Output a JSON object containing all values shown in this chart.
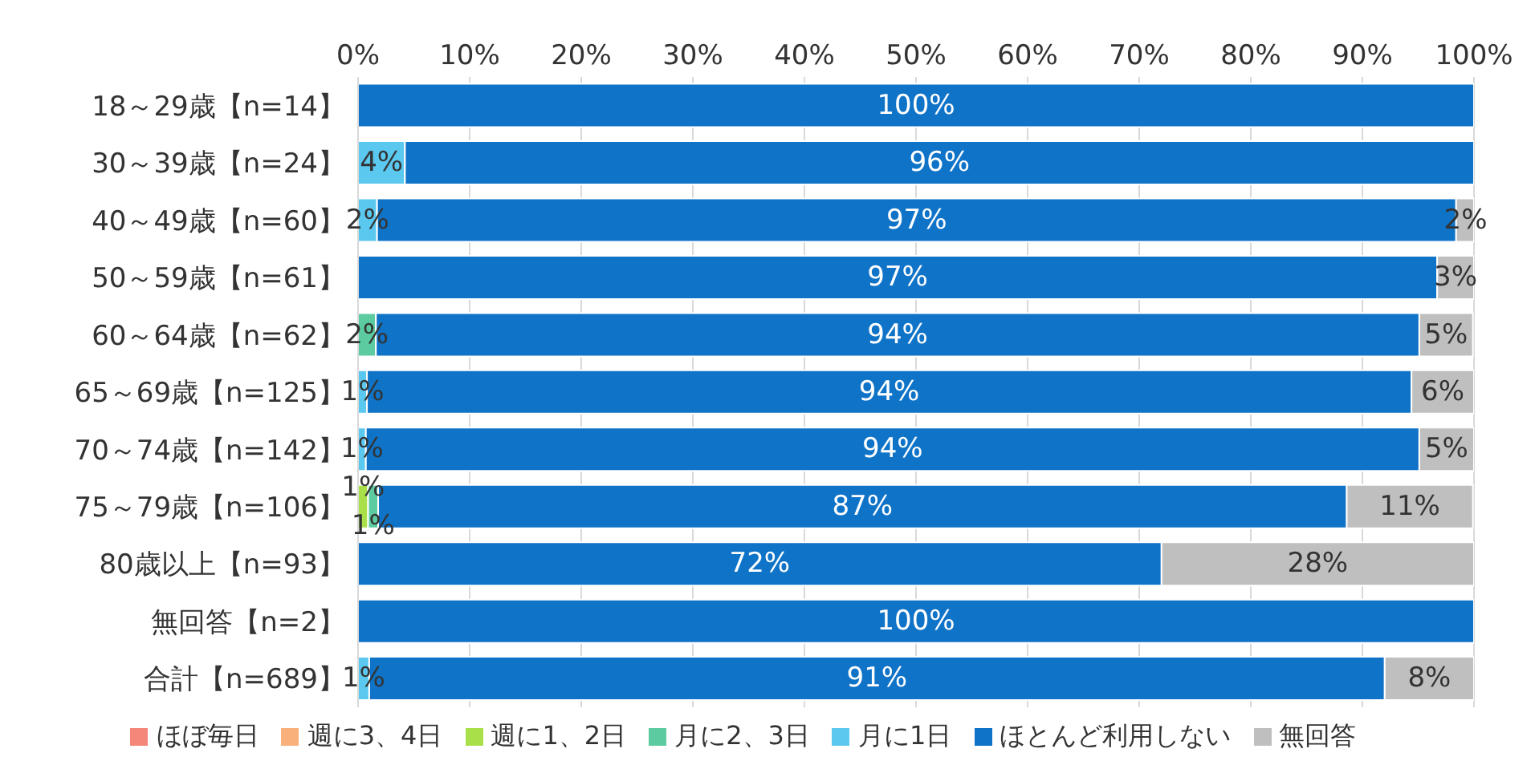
{
  "chart_data": {
    "type": "bar",
    "orientation": "horizontal",
    "stacked": true,
    "categories": [
      "18～29歳【n=14】",
      "30～39歳【n=24】",
      "40～49歳【n=60】",
      "50～59歳【n=61】",
      "60～64歳【n=62】",
      "65～69歳【n=125】",
      "70～74歳【n=142】",
      "75～79歳【n=106】",
      "80歳以上【n=93】",
      "無回答【n=2】",
      "合計【n=689】"
    ],
    "series": [
      {
        "name": "ほぼ毎日",
        "color": "#f4877a",
        "values": [
          0,
          0,
          0,
          0,
          0,
          0,
          0,
          0,
          0,
          0,
          0
        ],
        "value_labels": [
          null,
          null,
          null,
          null,
          null,
          null,
          null,
          null,
          null,
          null,
          null
        ]
      },
      {
        "name": "週に3、4日",
        "color": "#f9b07a",
        "values": [
          0,
          0,
          0,
          0,
          0,
          0,
          0,
          0,
          0,
          0,
          0
        ],
        "value_labels": [
          null,
          null,
          null,
          null,
          null,
          null,
          null,
          null,
          null,
          null,
          null
        ]
      },
      {
        "name": "週に1、2日",
        "color": "#a9e04a",
        "values": [
          0,
          0,
          0,
          0,
          0,
          0,
          0,
          0.9,
          0,
          0,
          0
        ],
        "value_labels": [
          null,
          null,
          null,
          null,
          null,
          null,
          null,
          "1%",
          null,
          null,
          null
        ]
      },
      {
        "name": "月に2、3日",
        "color": "#5ccba0",
        "values": [
          0,
          0,
          0,
          0,
          1.6,
          0,
          0,
          0.9,
          0,
          0,
          0
        ],
        "value_labels": [
          null,
          null,
          null,
          null,
          "2%",
          null,
          null,
          "1%",
          null,
          null,
          null
        ]
      },
      {
        "name": "月に1日",
        "color": "#5bc8f0",
        "values": [
          0,
          4.2,
          1.7,
          0,
          0,
          0.8,
          0.7,
          0,
          0,
          0,
          1.0
        ],
        "value_labels": [
          null,
          "4%",
          "2%",
          null,
          null,
          "1%",
          "1%",
          null,
          null,
          null,
          "1%"
        ]
      },
      {
        "name": "ほとんど利用しない",
        "color": "#0f73c8",
        "values": [
          100,
          95.8,
          96.7,
          96.7,
          93.5,
          93.6,
          94.4,
          86.8,
          72.0,
          100,
          91.0
        ],
        "value_labels": [
          "100%",
          "96%",
          "97%",
          "97%",
          "94%",
          "94%",
          "94%",
          "87%",
          "72%",
          "100%",
          "91%"
        ]
      },
      {
        "name": "無回答",
        "color": "#bfbfbf",
        "values": [
          0,
          0,
          1.7,
          3.3,
          4.8,
          5.6,
          4.9,
          11.3,
          28.0,
          0,
          8.0
        ],
        "value_labels": [
          null,
          null,
          "2%",
          "3%",
          "5%",
          "6%",
          "5%",
          "11%",
          "28%",
          null,
          "8%"
        ]
      }
    ],
    "xlim": [
      0,
      100
    ],
    "xticks": [
      {
        "value": 0,
        "label": "0%"
      },
      {
        "value": 10,
        "label": "10%"
      },
      {
        "value": 20,
        "label": "20%"
      },
      {
        "value": 30,
        "label": "30%"
      },
      {
        "value": 40,
        "label": "40%"
      },
      {
        "value": 50,
        "label": "50%"
      },
      {
        "value": 60,
        "label": "60%"
      },
      {
        "value": 70,
        "label": "70%"
      },
      {
        "value": 80,
        "label": "80%"
      },
      {
        "value": 90,
        "label": "90%"
      },
      {
        "value": 100,
        "label": "100%"
      }
    ],
    "grid": "x",
    "legend": "bottom"
  }
}
